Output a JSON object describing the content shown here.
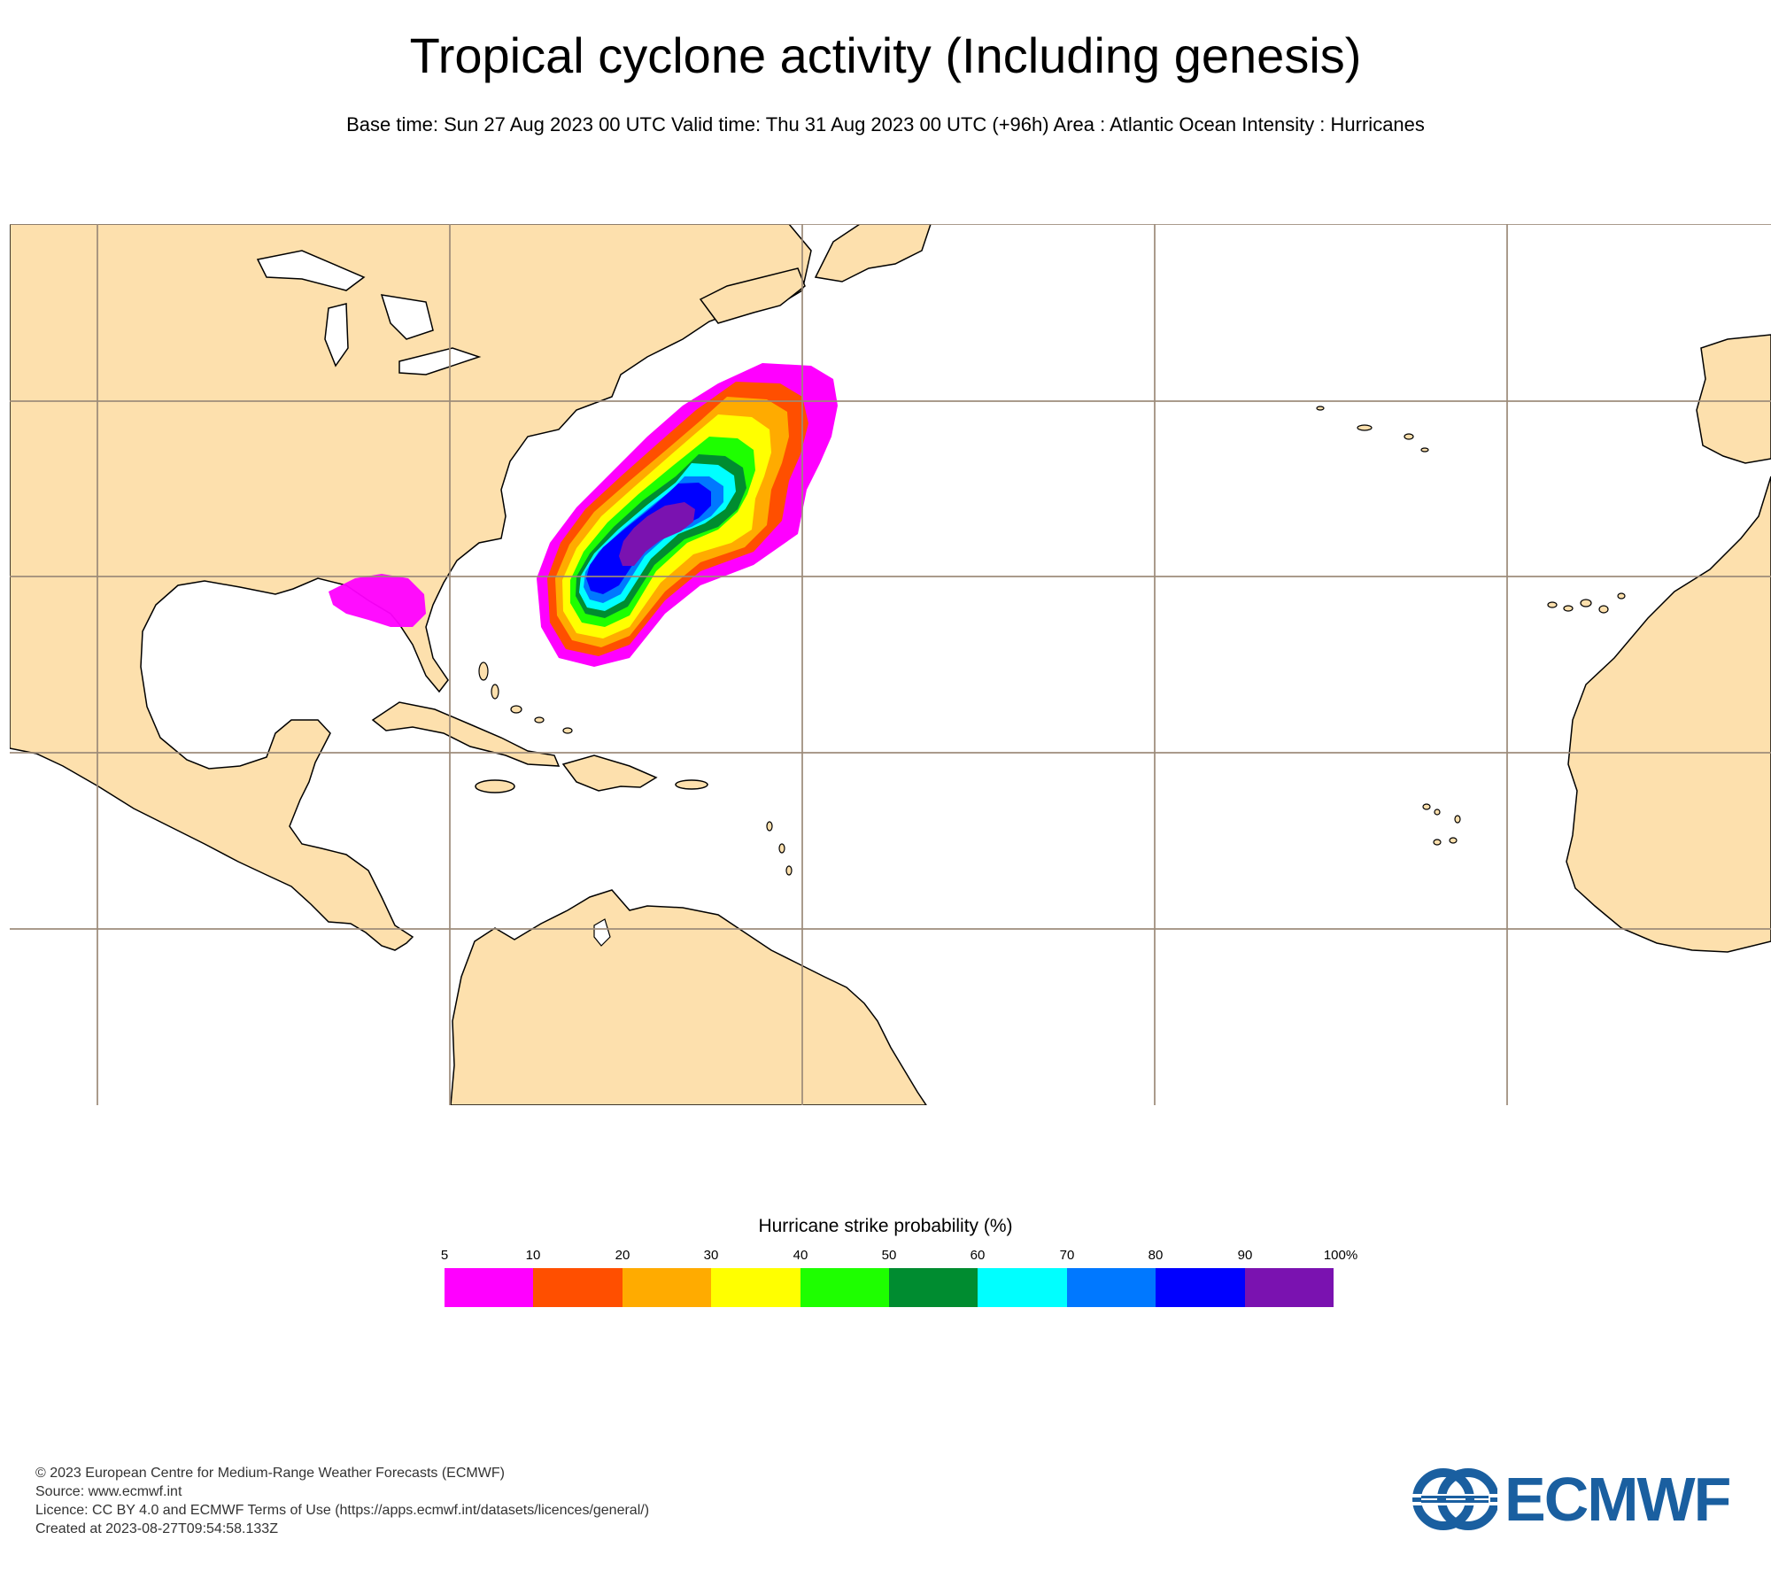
{
  "header": {
    "title": "Tropical cyclone activity (Including genesis)",
    "subtitle": "Base time: Sun 27 Aug 2023 00 UTC Valid time: Thu 31 Aug 2023 00 UTC (+96h) Area : Atlantic Ocean Intensity : Hurricanes"
  },
  "map": {
    "colors": {
      "land": "#fde0ad",
      "ocean": "#ffffff",
      "coast": "#000000",
      "grid": "#9b8a78"
    }
  },
  "legend": {
    "title": "Hurricane strike probability (%)",
    "labels": [
      "5",
      "10",
      "20",
      "30",
      "40",
      "50",
      "60",
      "70",
      "80",
      "90",
      "100%"
    ],
    "colors": [
      "#ff00ff",
      "#ff4f00",
      "#ffab00",
      "#ffff00",
      "#1eff00",
      "#008c30",
      "#00ffff",
      "#0078ff",
      "#0000ff",
      "#7a12b0"
    ]
  },
  "footer": {
    "line1": "© 2023 European Centre for Medium-Range Weather Forecasts (ECMWF)",
    "line2": "Source: www.ecmwf.int",
    "line3": "Licence: CC BY 4.0 and ECMWF Terms of Use (https://apps.ecmwf.int/datasets/licences/general/)",
    "line4": "Created at 2023-08-27T09:54:58.133Z"
  },
  "logo": {
    "text": "ECMWF",
    "color": "#1a5fa0"
  }
}
